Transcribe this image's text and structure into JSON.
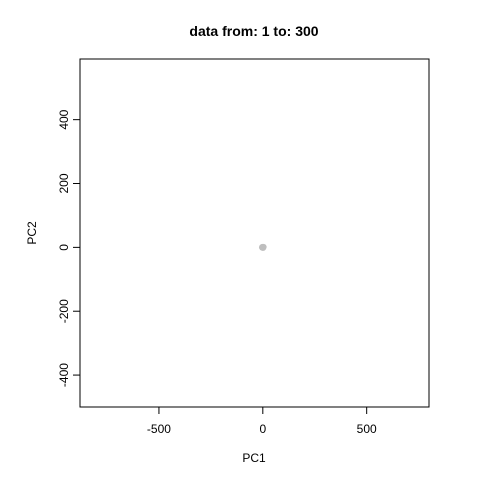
{
  "chart_data": {
    "type": "scatter",
    "title": "data from:  1  to:  300",
    "xlabel": "PC1",
    "ylabel": "PC2",
    "xlim": [
      -880,
      800
    ],
    "ylim": [
      -500,
      590
    ],
    "xticks": [
      -500,
      0,
      500
    ],
    "xtick_labels": [
      "-500",
      "0",
      "500"
    ],
    "yticks": [
      -400,
      -200,
      0,
      200,
      400
    ],
    "ytick_labels": [
      "-400",
      "-200",
      "0",
      "200",
      "400"
    ],
    "grid": false,
    "legend": "none",
    "point_color": "#bebebe",
    "points": [
      {
        "x": -3,
        "y": 0
      },
      {
        "x": 0,
        "y": 0
      },
      {
        "x": 3,
        "y": 1
      },
      {
        "x": 1,
        "y": -1
      },
      {
        "x": -1,
        "y": 1
      }
    ]
  }
}
